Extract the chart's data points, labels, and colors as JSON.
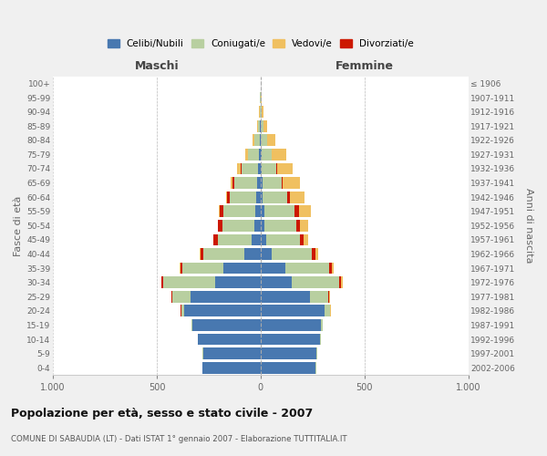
{
  "age_groups": [
    "0-4",
    "5-9",
    "10-14",
    "15-19",
    "20-24",
    "25-29",
    "30-34",
    "35-39",
    "40-44",
    "45-49",
    "50-54",
    "55-59",
    "60-64",
    "65-69",
    "70-74",
    "75-79",
    "80-84",
    "85-89",
    "90-94",
    "95-99",
    "100+"
  ],
  "birth_years": [
    "2002-2006",
    "1997-2001",
    "1992-1996",
    "1987-1991",
    "1982-1986",
    "1977-1981",
    "1972-1976",
    "1967-1971",
    "1962-1966",
    "1957-1961",
    "1952-1956",
    "1947-1951",
    "1942-1946",
    "1937-1941",
    "1932-1936",
    "1927-1931",
    "1922-1926",
    "1917-1921",
    "1912-1916",
    "1907-1911",
    "≤ 1906"
  ],
  "maschi": {
    "celibi": [
      280,
      278,
      302,
      328,
      368,
      338,
      218,
      178,
      78,
      44,
      28,
      24,
      20,
      18,
      14,
      8,
      4,
      2,
      1,
      0,
      0
    ],
    "coniugati": [
      2,
      2,
      2,
      4,
      14,
      88,
      252,
      198,
      198,
      164,
      158,
      154,
      128,
      108,
      78,
      52,
      28,
      10,
      4,
      2,
      0
    ],
    "vedovi": [
      0,
      0,
      0,
      0,
      1,
      1,
      1,
      1,
      2,
      3,
      4,
      4,
      6,
      10,
      16,
      14,
      8,
      4,
      2,
      1,
      0
    ],
    "divorziati": [
      0,
      0,
      0,
      0,
      2,
      4,
      8,
      12,
      14,
      18,
      18,
      20,
      14,
      10,
      6,
      2,
      0,
      0,
      0,
      0,
      0
    ]
  },
  "femmine": {
    "nubili": [
      265,
      268,
      288,
      290,
      310,
      238,
      148,
      118,
      52,
      28,
      20,
      16,
      10,
      8,
      6,
      4,
      2,
      2,
      1,
      0,
      0
    ],
    "coniugate": [
      2,
      3,
      4,
      8,
      24,
      88,
      232,
      212,
      196,
      162,
      152,
      146,
      120,
      94,
      68,
      48,
      28,
      12,
      6,
      2,
      0
    ],
    "vedove": [
      0,
      0,
      0,
      1,
      2,
      4,
      6,
      8,
      12,
      22,
      38,
      58,
      72,
      82,
      78,
      68,
      42,
      18,
      6,
      3,
      0
    ],
    "divorziate": [
      0,
      0,
      0,
      0,
      2,
      4,
      8,
      12,
      18,
      18,
      18,
      22,
      10,
      6,
      4,
      2,
      0,
      0,
      0,
      0,
      0
    ]
  },
  "colors": {
    "celibi_nubili": "#4878b0",
    "coniugati_e": "#b8cfa0",
    "vedovi_e": "#f0c060",
    "divorziati_e": "#cc1800"
  },
  "title": "Popolazione per età, sesso e stato civile - 2007",
  "subtitle": "COMUNE DI SABAUDIA (LT) - Dati ISTAT 1° gennaio 2007 - Elaborazione TUTTITALIA.IT",
  "xlabel_left": "Maschi",
  "xlabel_right": "Femmine",
  "ylabel_left": "Fasce di età",
  "ylabel_right": "Anni di nascita",
  "xlim": 1000,
  "legend_labels": [
    "Celibi/Nubili",
    "Coniugati/e",
    "Vedovi/e",
    "Divorziati/e"
  ],
  "bg_color": "#f0f0f0",
  "plot_bg_color": "#ffffff"
}
